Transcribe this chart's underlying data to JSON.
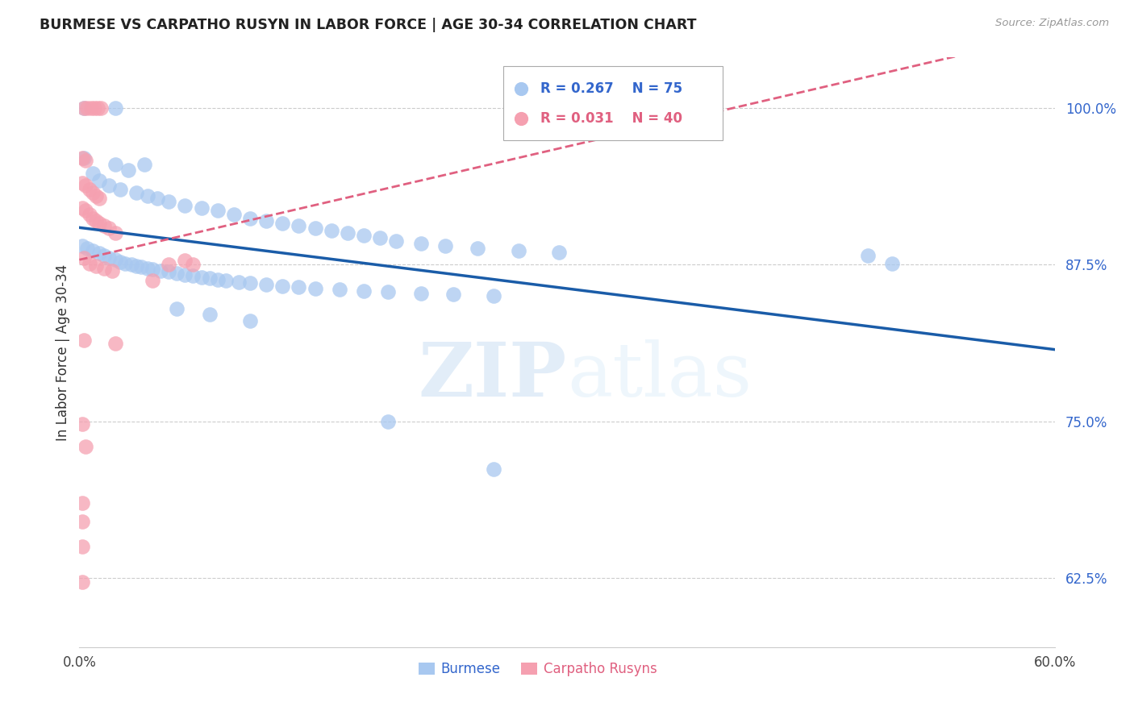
{
  "title": "BURMESE VS CARPATHO RUSYN IN LABOR FORCE | AGE 30-34 CORRELATION CHART",
  "source": "Source: ZipAtlas.com",
  "ylabel": "In Labor Force | Age 30-34",
  "xlim": [
    0.0,
    0.6
  ],
  "ylim": [
    0.57,
    1.04
  ],
  "xticks": [
    0.0,
    0.1,
    0.2,
    0.3,
    0.4,
    0.5,
    0.6
  ],
  "xtick_labels": [
    "0.0%",
    "",
    "",
    "",
    "",
    "",
    "60.0%"
  ],
  "yticks": [
    0.625,
    0.75,
    0.875,
    1.0
  ],
  "ytick_labels": [
    "62.5%",
    "75.0%",
    "87.5%",
    "100.0%"
  ],
  "watermark_zip": "ZIP",
  "watermark_atlas": "atlas",
  "legend_blue_R": "R = 0.267",
  "legend_blue_N": "N = 75",
  "legend_pink_R": "R = 0.031",
  "legend_pink_N": "N = 40",
  "blue_color": "#a8c8f0",
  "pink_color": "#f5a0b0",
  "blue_line_color": "#1a5ca8",
  "pink_line_color": "#e06080",
  "grid_color": "#cccccc",
  "background_color": "#ffffff",
  "blue_scatter": [
    [
      0.003,
      1.0
    ],
    [
      0.022,
      1.0
    ],
    [
      0.003,
      0.96
    ],
    [
      0.022,
      0.955
    ],
    [
      0.04,
      0.955
    ],
    [
      0.03,
      0.95
    ],
    [
      0.008,
      0.948
    ],
    [
      0.012,
      0.942
    ],
    [
      0.018,
      0.938
    ],
    [
      0.025,
      0.935
    ],
    [
      0.035,
      0.932
    ],
    [
      0.042,
      0.93
    ],
    [
      0.048,
      0.928
    ],
    [
      0.055,
      0.925
    ],
    [
      0.065,
      0.922
    ],
    [
      0.075,
      0.92
    ],
    [
      0.085,
      0.918
    ],
    [
      0.095,
      0.915
    ],
    [
      0.105,
      0.912
    ],
    [
      0.115,
      0.91
    ],
    [
      0.125,
      0.908
    ],
    [
      0.135,
      0.906
    ],
    [
      0.145,
      0.904
    ],
    [
      0.155,
      0.902
    ],
    [
      0.165,
      0.9
    ],
    [
      0.175,
      0.898
    ],
    [
      0.185,
      0.896
    ],
    [
      0.195,
      0.894
    ],
    [
      0.21,
      0.892
    ],
    [
      0.225,
      0.89
    ],
    [
      0.245,
      0.888
    ],
    [
      0.27,
      0.886
    ],
    [
      0.295,
      0.885
    ],
    [
      0.002,
      0.89
    ],
    [
      0.005,
      0.888
    ],
    [
      0.008,
      0.886
    ],
    [
      0.012,
      0.884
    ],
    [
      0.015,
      0.882
    ],
    [
      0.018,
      0.88
    ],
    [
      0.022,
      0.879
    ],
    [
      0.025,
      0.877
    ],
    [
      0.028,
      0.876
    ],
    [
      0.032,
      0.875
    ],
    [
      0.035,
      0.874
    ],
    [
      0.038,
      0.873
    ],
    [
      0.042,
      0.872
    ],
    [
      0.045,
      0.871
    ],
    [
      0.05,
      0.87
    ],
    [
      0.055,
      0.869
    ],
    [
      0.06,
      0.868
    ],
    [
      0.065,
      0.867
    ],
    [
      0.07,
      0.866
    ],
    [
      0.075,
      0.865
    ],
    [
      0.08,
      0.864
    ],
    [
      0.085,
      0.863
    ],
    [
      0.09,
      0.862
    ],
    [
      0.098,
      0.861
    ],
    [
      0.105,
      0.86
    ],
    [
      0.115,
      0.859
    ],
    [
      0.125,
      0.858
    ],
    [
      0.135,
      0.857
    ],
    [
      0.145,
      0.856
    ],
    [
      0.16,
      0.855
    ],
    [
      0.175,
      0.854
    ],
    [
      0.19,
      0.853
    ],
    [
      0.21,
      0.852
    ],
    [
      0.23,
      0.851
    ],
    [
      0.255,
      0.85
    ],
    [
      0.06,
      0.84
    ],
    [
      0.08,
      0.835
    ],
    [
      0.105,
      0.83
    ],
    [
      0.19,
      0.75
    ],
    [
      0.255,
      0.712
    ],
    [
      0.5,
      0.876
    ],
    [
      0.485,
      0.882
    ]
  ],
  "pink_scatter": [
    [
      0.003,
      1.0
    ],
    [
      0.005,
      1.0
    ],
    [
      0.007,
      1.0
    ],
    [
      0.009,
      1.0
    ],
    [
      0.011,
      1.0
    ],
    [
      0.013,
      1.0
    ],
    [
      0.002,
      0.96
    ],
    [
      0.004,
      0.958
    ],
    [
      0.002,
      0.94
    ],
    [
      0.004,
      0.938
    ],
    [
      0.006,
      0.935
    ],
    [
      0.008,
      0.932
    ],
    [
      0.01,
      0.93
    ],
    [
      0.012,
      0.928
    ],
    [
      0.002,
      0.92
    ],
    [
      0.004,
      0.918
    ],
    [
      0.006,
      0.915
    ],
    [
      0.008,
      0.912
    ],
    [
      0.01,
      0.91
    ],
    [
      0.012,
      0.908
    ],
    [
      0.015,
      0.906
    ],
    [
      0.018,
      0.904
    ],
    [
      0.022,
      0.9
    ],
    [
      0.003,
      0.88
    ],
    [
      0.006,
      0.876
    ],
    [
      0.01,
      0.874
    ],
    [
      0.015,
      0.872
    ],
    [
      0.02,
      0.87
    ],
    [
      0.003,
      0.815
    ],
    [
      0.022,
      0.812
    ],
    [
      0.002,
      0.748
    ],
    [
      0.004,
      0.73
    ],
    [
      0.002,
      0.685
    ],
    [
      0.002,
      0.67
    ],
    [
      0.002,
      0.65
    ],
    [
      0.002,
      0.622
    ],
    [
      0.055,
      0.875
    ],
    [
      0.045,
      0.862
    ],
    [
      0.065,
      0.878
    ],
    [
      0.07,
      0.875
    ]
  ]
}
